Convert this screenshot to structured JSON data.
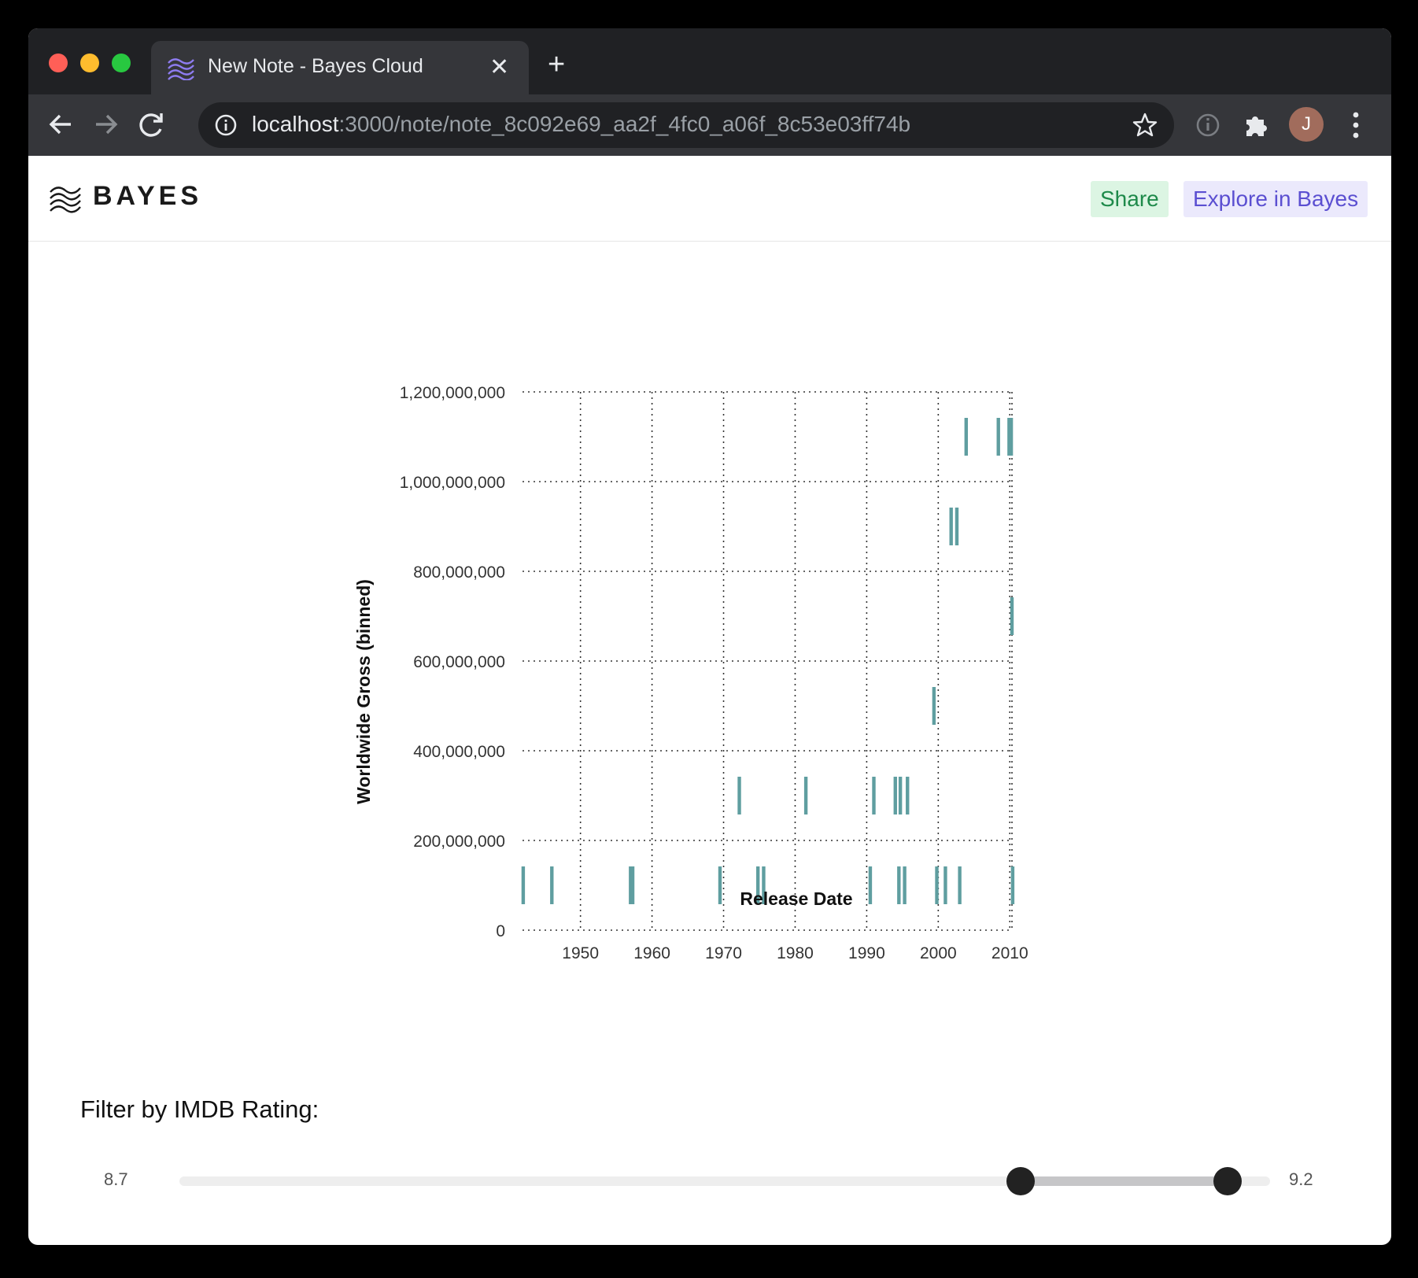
{
  "browser": {
    "tab_title": "New Note - Bayes Cloud",
    "url_host": "localhost",
    "url_path": ":3000/note/note_8c092e69_aa2f_4fc0_a06f_8c53e03ff74b",
    "avatar_initial": "J",
    "icons": [
      "back-arrow-icon",
      "forward-arrow-icon",
      "reload-icon",
      "info-icon",
      "star-icon",
      "extension-icon",
      "puzzle-icon",
      "more-icon"
    ]
  },
  "app": {
    "logo_text": "BAYES",
    "share_label": "Share",
    "explore_label": "Explore in Bayes",
    "share_color": "#1e8a4a",
    "explore_color": "#5b4fd1"
  },
  "chart_data": {
    "type": "bar",
    "xlabel": "Release Date",
    "ylabel": "Worldwide Gross (binned)",
    "x_ticks": [
      "1950",
      "1960",
      "1970",
      "1980",
      "1990",
      "2000",
      "2010"
    ],
    "y_ticks": [
      "0",
      "200,000,000",
      "400,000,000",
      "600,000,000",
      "800,000,000",
      "1,000,000,000",
      "1,200,000,000"
    ],
    "xlim": [
      1941.9,
      2010.3
    ],
    "ylim": [
      0,
      1200000000
    ],
    "bin_size": 200000000,
    "grid": true,
    "color": "#5f9ea0",
    "marks": [
      {
        "year": 1942.0,
        "bin": 0
      },
      {
        "year": 1946.0,
        "bin": 0
      },
      {
        "year": 1957.0,
        "bin": 0
      },
      {
        "year": 1957.3,
        "bin": 0
      },
      {
        "year": 1969.5,
        "bin": 0
      },
      {
        "year": 1974.8,
        "bin": 0
      },
      {
        "year": 1975.6,
        "bin": 0
      },
      {
        "year": 1990.5,
        "bin": 0
      },
      {
        "year": 1994.5,
        "bin": 0
      },
      {
        "year": 1995.3,
        "bin": 0
      },
      {
        "year": 1999.8,
        "bin": 0
      },
      {
        "year": 2001.0,
        "bin": 0
      },
      {
        "year": 2003.0,
        "bin": 0
      },
      {
        "year": 2010.4,
        "bin": 0
      },
      {
        "year": 1972.2,
        "bin": 1
      },
      {
        "year": 1981.5,
        "bin": 1
      },
      {
        "year": 1991.0,
        "bin": 1
      },
      {
        "year": 1994.0,
        "bin": 1
      },
      {
        "year": 1994.7,
        "bin": 1
      },
      {
        "year": 1995.7,
        "bin": 1
      },
      {
        "year": 1999.4,
        "bin": 2
      },
      {
        "year": 2010.3,
        "bin": 3
      },
      {
        "year": 2001.8,
        "bin": 4
      },
      {
        "year": 2002.6,
        "bin": 4
      },
      {
        "year": 2003.9,
        "bin": 5
      },
      {
        "year": 2008.4,
        "bin": 5
      },
      {
        "year": 2009.9,
        "bin": 5
      },
      {
        "year": 2010.2,
        "bin": 5
      }
    ]
  },
  "filter": {
    "label": "Filter by IMDB Rating:",
    "min_label": "8.7",
    "max_label": "9.2",
    "range": [
      8.7,
      9.2
    ],
    "selected": [
      9.1,
      9.2
    ]
  }
}
